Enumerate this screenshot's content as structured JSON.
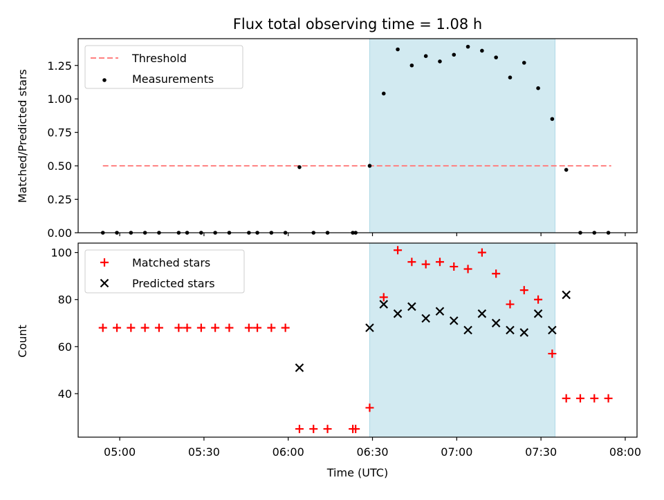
{
  "figure": {
    "title": "Flux total observing time = 1.08 h",
    "xlabel": "Time (UTC)",
    "x_ticks": [
      "05:00",
      "05:30",
      "06:00",
      "06:30",
      "07:00",
      "07:30",
      "08:00"
    ],
    "highlight_color": "#add8e6",
    "highlight_span": [
      "06:29",
      "07:35"
    ]
  },
  "chart_data": [
    {
      "type": "scatter",
      "panel": "top",
      "ylabel": "Matched/Predicted stars",
      "ylim": [
        0,
        1.45
      ],
      "y_ticks": [
        "0.00",
        "0.25",
        "0.50",
        "0.75",
        "1.00",
        "1.25"
      ],
      "legend": {
        "placement": "upper-left",
        "entries": [
          "Threshold",
          "Measurements"
        ]
      },
      "series": [
        {
          "name": "Threshold",
          "kind": "dashed-line",
          "color": "#ff7f7f",
          "x": [
            "04:54",
            "07:55"
          ],
          "values": [
            0.5,
            0.5
          ]
        },
        {
          "name": "Measurements",
          "kind": "dot",
          "color": "#000000",
          "x": [
            "04:54",
            "04:59",
            "05:04",
            "05:09",
            "05:14",
            "05:21",
            "05:24",
            "05:29",
            "05:34",
            "05:39",
            "05:46",
            "05:49",
            "05:54",
            "05:59",
            "06:04",
            "06:09",
            "06:14",
            "06:23",
            "06:24",
            "06:29",
            "06:34",
            "06:39",
            "06:44",
            "06:49",
            "06:54",
            "06:59",
            "07:04",
            "07:09",
            "07:14",
            "07:19",
            "07:24",
            "07:29",
            "07:34",
            "07:39",
            "07:44",
            "07:49",
            "07:54"
          ],
          "values": [
            0,
            0,
            0,
            0,
            0,
            0,
            0,
            0,
            0,
            0,
            0,
            0,
            0,
            0,
            0.49,
            0,
            0,
            0,
            0,
            0.5,
            1.04,
            1.37,
            1.25,
            1.32,
            1.28,
            1.33,
            1.39,
            1.36,
            1.31,
            1.16,
            1.27,
            1.08,
            0.85,
            0.47,
            0,
            0,
            0
          ]
        }
      ]
    },
    {
      "type": "scatter",
      "panel": "bottom",
      "ylabel": "Count",
      "ylim": [
        21.5,
        104
      ],
      "y_ticks": [
        "40",
        "60",
        "80",
        "100"
      ],
      "legend": {
        "placement": "upper-left",
        "entries": [
          "Matched stars",
          "Predicted stars"
        ]
      },
      "series": [
        {
          "name": "Matched stars",
          "kind": "plus",
          "color": "#ff0000",
          "x": [
            "04:54",
            "04:59",
            "05:04",
            "05:09",
            "05:14",
            "05:21",
            "05:24",
            "05:29",
            "05:34",
            "05:39",
            "05:46",
            "05:49",
            "05:54",
            "05:59",
            "06:04",
            "06:09",
            "06:14",
            "06:23",
            "06:24",
            "06:29",
            "06:34",
            "06:39",
            "06:44",
            "06:49",
            "06:54",
            "06:59",
            "07:04",
            "07:09",
            "07:14",
            "07:19",
            "07:24",
            "07:29",
            "07:34",
            "07:39",
            "07:44",
            "07:49",
            "07:54"
          ],
          "values": [
            68,
            68,
            68,
            68,
            68,
            68,
            68,
            68,
            68,
            68,
            68,
            68,
            68,
            68,
            25,
            25,
            25,
            25,
            25,
            34,
            81,
            101,
            96,
            95,
            96,
            94,
            93,
            100,
            91,
            78,
            84,
            80,
            57,
            38,
            38,
            38,
            38
          ]
        },
        {
          "name": "Predicted stars",
          "kind": "cross",
          "color": "#000000",
          "x": [
            "06:04",
            "06:29",
            "06:34",
            "06:39",
            "06:44",
            "06:49",
            "06:54",
            "06:59",
            "07:04",
            "07:09",
            "07:14",
            "07:19",
            "07:24",
            "07:29",
            "07:34",
            "07:39"
          ],
          "values": [
            51,
            68,
            78,
            74,
            77,
            72,
            75,
            71,
            67,
            74,
            70,
            67,
            66,
            74,
            67,
            82
          ]
        }
      ]
    }
  ]
}
